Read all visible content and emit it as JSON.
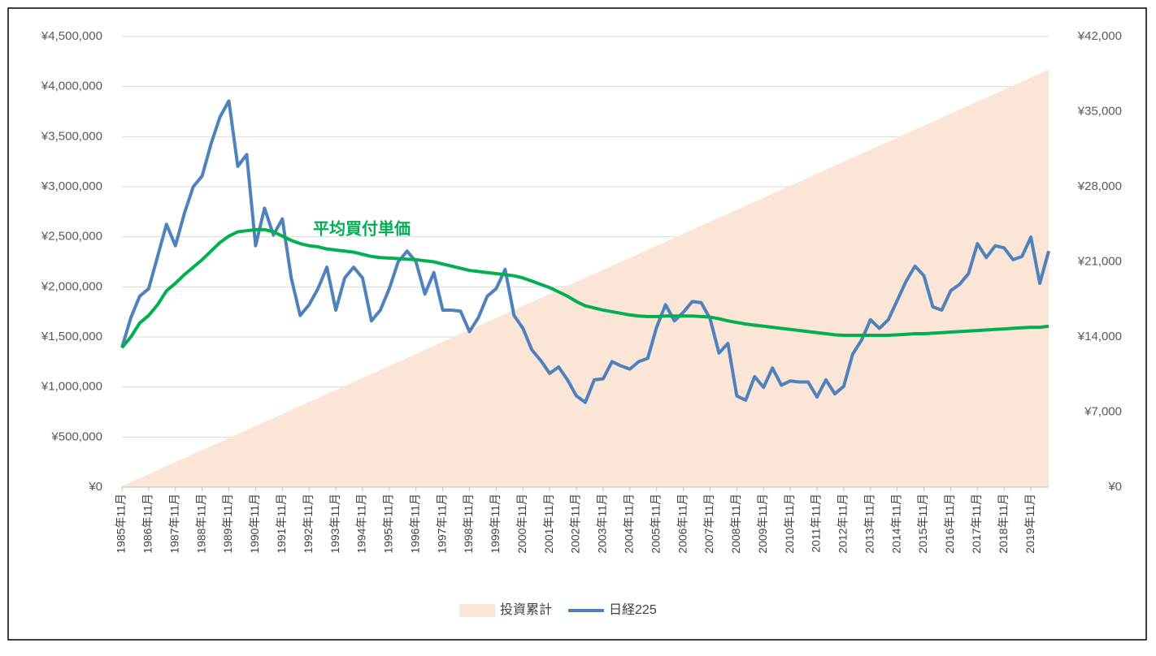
{
  "chart_data": {
    "type": "combo",
    "categories": [
      "1985年11月",
      null,
      null,
      "1986年11月",
      null,
      null,
      "1987年11月",
      null,
      null,
      "1988年11月",
      null,
      null,
      "1989年11月",
      null,
      null,
      "1990年11月",
      null,
      null,
      "1991年11月",
      null,
      null,
      "1992年11月",
      null,
      null,
      "1993年11月",
      null,
      null,
      "1994年11月",
      null,
      null,
      "1995年11月",
      null,
      null,
      "1996年11月",
      null,
      null,
      "1997年11月",
      null,
      null,
      "1998年11月",
      null,
      null,
      "1999年11月",
      null,
      null,
      "2000年11月",
      null,
      null,
      "2001年11月",
      null,
      null,
      "2002年11月",
      null,
      null,
      "2003年11月",
      null,
      null,
      "2004年11月",
      null,
      null,
      "2005年11月",
      null,
      null,
      "2006年11月",
      null,
      null,
      "2007年11月",
      null,
      null,
      "2008年11月",
      null,
      null,
      "2009年11月",
      null,
      null,
      "2010年11月",
      null,
      null,
      "2011年11月",
      null,
      null,
      "2012年11月",
      null,
      null,
      "2013年11月",
      null,
      null,
      "2014年11月",
      null,
      null,
      "2015年11月",
      null,
      null,
      "2016年11月",
      null,
      null,
      "2017年11月",
      null,
      null,
      "2018年11月",
      null,
      null,
      "2019年11月",
      null,
      null
    ],
    "series": [
      {
        "name": "投資累計",
        "type": "area",
        "axis": "y",
        "color": "#fbe5d6",
        "legend": true,
        "values": [
          10000,
          50000,
          90000,
          130000,
          170000,
          210000,
          250000,
          290000,
          330000,
          370000,
          410000,
          450000,
          490000,
          530000,
          570000,
          610000,
          650000,
          690000,
          730000,
          770000,
          810000,
          850000,
          890000,
          930000,
          970000,
          1010000,
          1050000,
          1090000,
          1130000,
          1170000,
          1210000,
          1250000,
          1290000,
          1330000,
          1370000,
          1410000,
          1450000,
          1490000,
          1530000,
          1570000,
          1610000,
          1650000,
          1690000,
          1730000,
          1770000,
          1810000,
          1850000,
          1890000,
          1930000,
          1970000,
          2010000,
          2050000,
          2090000,
          2130000,
          2170000,
          2210000,
          2250000,
          2290000,
          2330000,
          2370000,
          2410000,
          2450000,
          2490000,
          2530000,
          2570000,
          2610000,
          2650000,
          2690000,
          2730000,
          2770000,
          2810000,
          2850000,
          2890000,
          2930000,
          2970000,
          3010000,
          3050000,
          3090000,
          3130000,
          3170000,
          3210000,
          3250000,
          3290000,
          3330000,
          3370000,
          3410000,
          3450000,
          3490000,
          3530000,
          3570000,
          3610000,
          3650000,
          3690000,
          3730000,
          3770000,
          3810000,
          3850000,
          3890000,
          3930000,
          3970000,
          4010000,
          4050000,
          4090000,
          4130000,
          4170000
        ]
      },
      {
        "name": "日経225",
        "type": "line",
        "axis": "y2",
        "color": "#4f81bd",
        "legend": true,
        "values": [
          13000,
          15800,
          17800,
          18500,
          21500,
          24500,
          22500,
          25500,
          28000,
          29000,
          32000,
          34500,
          36000,
          29900,
          31000,
          22500,
          26000,
          23500,
          25000,
          19500,
          16000,
          17000,
          18500,
          20500,
          16500,
          19500,
          20500,
          19500,
          15500,
          16500,
          18500,
          21000,
          22000,
          21000,
          18000,
          20000,
          16500,
          16500,
          16400,
          14500,
          15800,
          17800,
          18500,
          20300,
          16000,
          14800,
          12800,
          11800,
          10600,
          11200,
          10000,
          8500,
          7900,
          10000,
          10100,
          11700,
          11300,
          11000,
          11700,
          12000,
          14900,
          17000,
          15500,
          16300,
          17300,
          17200,
          15700,
          12500,
          13400,
          8500,
          8100,
          10300,
          9300,
          11100,
          9500,
          9900,
          9800,
          9800,
          8400,
          10000,
          8700,
          9400,
          12400,
          13700,
          15600,
          14800,
          15600,
          17400,
          19200,
          20600,
          19700,
          16800,
          16500,
          18300,
          18900,
          19900,
          22700,
          21400,
          22500,
          22300,
          21200,
          21500,
          23300,
          19000,
          22000
        ]
      },
      {
        "name": "平均買付単価",
        "type": "line",
        "axis": "y2",
        "color": "#00b050",
        "legend": false,
        "values": [
          13000,
          14000,
          15300,
          16000,
          17000,
          18300,
          19000,
          19800,
          20500,
          21200,
          22000,
          22800,
          23400,
          23800,
          23900,
          24000,
          24000,
          23800,
          23400,
          23000,
          22700,
          22500,
          22400,
          22200,
          22100,
          22000,
          21900,
          21700,
          21500,
          21400,
          21350,
          21300,
          21250,
          21200,
          21100,
          21000,
          20800,
          20600,
          20400,
          20200,
          20100,
          20000,
          19900,
          19800,
          19700,
          19500,
          19200,
          18900,
          18600,
          18200,
          17800,
          17300,
          16900,
          16700,
          16500,
          16350,
          16200,
          16050,
          15950,
          15900,
          15900,
          15950,
          15950,
          15950,
          15950,
          15900,
          15850,
          15700,
          15500,
          15350,
          15200,
          15100,
          15000,
          14900,
          14800,
          14700,
          14600,
          14500,
          14400,
          14300,
          14200,
          14150,
          14150,
          14150,
          14150,
          14150,
          14150,
          14200,
          14250,
          14300,
          14300,
          14350,
          14400,
          14450,
          14500,
          14550,
          14600,
          14650,
          14700,
          14750,
          14800,
          14850,
          14900,
          14900,
          15000
        ]
      }
    ],
    "ylim": [
      0,
      4500000
    ],
    "yticks": [
      {
        "value": 0,
        "label": "¥0"
      },
      {
        "value": 500000,
        "label": "¥500,000"
      },
      {
        "value": 1000000,
        "label": "¥1,000,000"
      },
      {
        "value": 1500000,
        "label": "¥1,500,000"
      },
      {
        "value": 2000000,
        "label": "¥2,000,000"
      },
      {
        "value": 2500000,
        "label": "¥2,500,000"
      },
      {
        "value": 3000000,
        "label": "¥3,000,000"
      },
      {
        "value": 3500000,
        "label": "¥3,500,000"
      },
      {
        "value": 4000000,
        "label": "¥4,000,000"
      },
      {
        "value": 4500000,
        "label": "¥4,500,000"
      }
    ],
    "y2lim": [
      0,
      42000
    ],
    "y2ticks": [
      {
        "value": 0,
        "label": "¥0"
      },
      {
        "value": 7000,
        "label": "¥7,000"
      },
      {
        "value": 14000,
        "label": "¥14,000"
      },
      {
        "value": 21000,
        "label": "¥21,000"
      },
      {
        "value": 28000,
        "label": "¥28,000"
      },
      {
        "value": 35000,
        "label": "¥35,000"
      },
      {
        "value": 42000,
        "label": "¥42,000"
      }
    ],
    "grid": true,
    "legend_position": "bottom"
  }
}
